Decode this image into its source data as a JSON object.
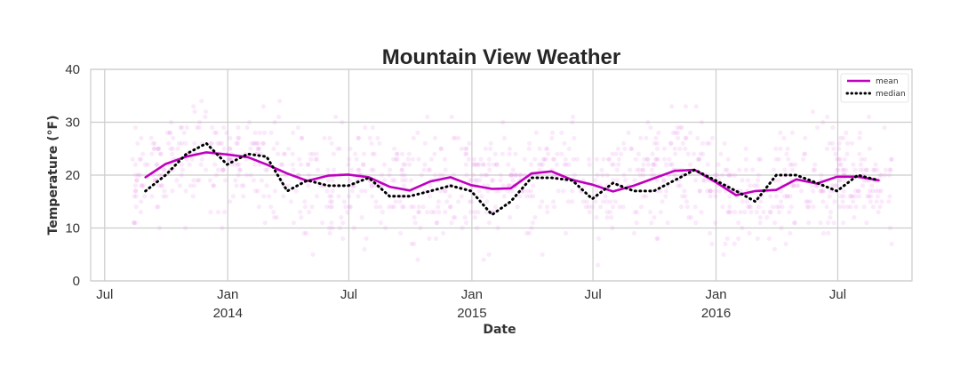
{
  "chart_data": {
    "type": "line",
    "title": "Mountain View Weather",
    "xlabel": "Date",
    "ylabel": "Temperature (°F)",
    "ylim": [
      0,
      40
    ],
    "xlim": [
      "2013-06-10",
      "2016-10-20"
    ],
    "y_ticks": [
      0,
      10,
      20,
      30,
      40
    ],
    "x_ticks": [
      {
        "date": "2013-07-01",
        "label": "Jul",
        "sublabel": ""
      },
      {
        "date": "2014-01-01",
        "label": "Jan",
        "sublabel": "2014"
      },
      {
        "date": "2014-07-01",
        "label": "Jul",
        "sublabel": ""
      },
      {
        "date": "2015-01-01",
        "label": "Jan",
        "sublabel": "2015"
      },
      {
        "date": "2015-07-01",
        "label": "Jul",
        "sublabel": ""
      },
      {
        "date": "2016-01-01",
        "label": "Jan",
        "sublabel": "2016"
      },
      {
        "date": "2016-07-01",
        "label": "Jul",
        "sublabel": ""
      }
    ],
    "grid": true,
    "legend_position": "top-right",
    "scatter_color": "#e57ee5",
    "series": [
      {
        "name": "mean",
        "style": "solid",
        "color": "#bf00bf",
        "points": [
          [
            "2013-08-31",
            19.6
          ],
          [
            "2013-09-30",
            22.1
          ],
          [
            "2013-10-31",
            23.5
          ],
          [
            "2013-11-30",
            24.3
          ],
          [
            "2013-12-31",
            23.9
          ],
          [
            "2014-01-31",
            23.4
          ],
          [
            "2014-02-28",
            22.0
          ],
          [
            "2014-03-31",
            20.3
          ],
          [
            "2014-04-30",
            18.9
          ],
          [
            "2014-05-31",
            19.9
          ],
          [
            "2014-06-30",
            20.1
          ],
          [
            "2014-07-31",
            19.6
          ],
          [
            "2014-08-31",
            17.8
          ],
          [
            "2014-09-30",
            17.1
          ],
          [
            "2014-10-31",
            18.8
          ],
          [
            "2014-11-30",
            19.6
          ],
          [
            "2014-12-31",
            18.1
          ],
          [
            "2015-01-31",
            17.4
          ],
          [
            "2015-02-28",
            17.5
          ],
          [
            "2015-03-31",
            20.3
          ],
          [
            "2015-04-30",
            20.7
          ],
          [
            "2015-05-31",
            19.1
          ],
          [
            "2015-06-30",
            18.2
          ],
          [
            "2015-07-31",
            16.9
          ],
          [
            "2015-08-31",
            18.0
          ],
          [
            "2015-09-30",
            19.4
          ],
          [
            "2015-10-31",
            20.8
          ],
          [
            "2015-11-30",
            21.0
          ],
          [
            "2015-12-31",
            18.7
          ],
          [
            "2016-01-31",
            16.2
          ],
          [
            "2016-02-29",
            17.0
          ],
          [
            "2016-03-31",
            17.2
          ],
          [
            "2016-04-30",
            19.2
          ],
          [
            "2016-05-31",
            18.4
          ],
          [
            "2016-06-30",
            19.7
          ],
          [
            "2016-07-31",
            19.7
          ],
          [
            "2016-08-31",
            19.0
          ]
        ]
      },
      {
        "name": "median",
        "style": "dotted",
        "color": "#000000",
        "points": [
          [
            "2013-08-31",
            17.0
          ],
          [
            "2013-09-30",
            20.0
          ],
          [
            "2013-10-31",
            24.0
          ],
          [
            "2013-11-30",
            26.0
          ],
          [
            "2013-12-31",
            22.0
          ],
          [
            "2014-01-31",
            24.0
          ],
          [
            "2014-02-28",
            23.5
          ],
          [
            "2014-03-31",
            17.0
          ],
          [
            "2014-04-30",
            19.0
          ],
          [
            "2014-05-31",
            18.0
          ],
          [
            "2014-06-30",
            18.0
          ],
          [
            "2014-07-31",
            19.5
          ],
          [
            "2014-08-31",
            16.0
          ],
          [
            "2014-09-30",
            16.0
          ],
          [
            "2014-10-31",
            17.0
          ],
          [
            "2014-11-30",
            18.0
          ],
          [
            "2014-12-31",
            17.0
          ],
          [
            "2015-01-31",
            12.5
          ],
          [
            "2015-02-28",
            15.0
          ],
          [
            "2015-03-31",
            19.5
          ],
          [
            "2015-04-30",
            19.5
          ],
          [
            "2015-05-31",
            19.0
          ],
          [
            "2015-06-30",
            15.5
          ],
          [
            "2015-07-31",
            18.5
          ],
          [
            "2015-08-31",
            17.0
          ],
          [
            "2015-09-30",
            17.0
          ],
          [
            "2015-10-31",
            19.0
          ],
          [
            "2015-11-30",
            21.0
          ],
          [
            "2015-12-31",
            19.0
          ],
          [
            "2016-01-31",
            17.0
          ],
          [
            "2016-02-29",
            15.0
          ],
          [
            "2016-03-31",
            20.0
          ],
          [
            "2016-04-30",
            20.0
          ],
          [
            "2016-05-31",
            18.5
          ],
          [
            "2016-06-30",
            17.0
          ],
          [
            "2016-07-31",
            20.0
          ],
          [
            "2016-08-31",
            19.0
          ]
        ]
      }
    ]
  }
}
